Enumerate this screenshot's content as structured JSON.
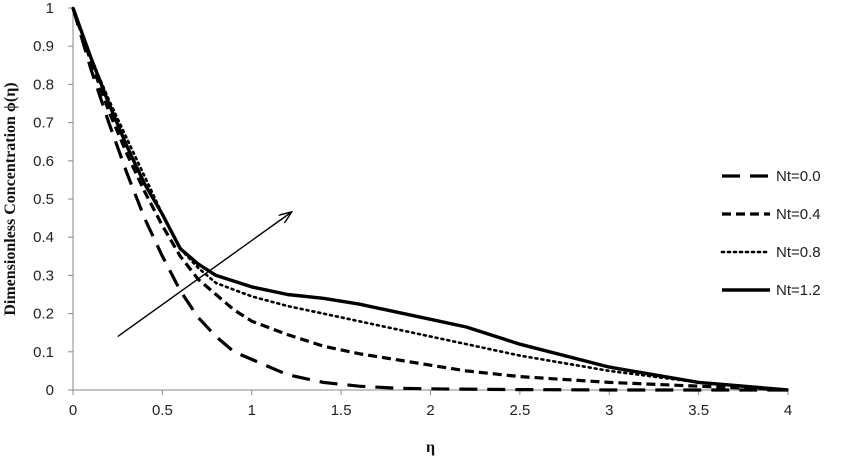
{
  "chart_data": {
    "type": "line",
    "xlabel": "η",
    "ylabel": "Dimensionless Concentration ϕ(η)",
    "xlim": [
      0,
      4
    ],
    "ylim": [
      0,
      1
    ],
    "x_ticks": [
      "0",
      "0.5",
      "1",
      "1.5",
      "2",
      "2.5",
      "3",
      "3.5",
      "4"
    ],
    "y_ticks": [
      "0",
      "0.1",
      "0.2",
      "0.3",
      "0.4",
      "0.5",
      "0.6",
      "0.7",
      "0.8",
      "0.9",
      "1"
    ],
    "grid": false,
    "legend_position": "right",
    "series": [
      {
        "name": "Nt=0.0",
        "style": "long-dash",
        "x": [
          0,
          0.1,
          0.2,
          0.3,
          0.4,
          0.5,
          0.6,
          0.7,
          0.8,
          0.9,
          1.0,
          1.2,
          1.4,
          1.6,
          1.8,
          2.0,
          2.5,
          3.0,
          3.5,
          4.0
        ],
        "y": [
          1.0,
          0.84,
          0.7,
          0.57,
          0.45,
          0.35,
          0.26,
          0.19,
          0.14,
          0.1,
          0.08,
          0.04,
          0.02,
          0.01,
          0.005,
          0.003,
          0.001,
          0.0,
          0.0,
          0.0
        ]
      },
      {
        "name": "Nt=0.4",
        "style": "short-dash",
        "x": [
          0,
          0.1,
          0.2,
          0.3,
          0.4,
          0.5,
          0.6,
          0.7,
          0.8,
          0.9,
          1.0,
          1.2,
          1.4,
          1.6,
          1.8,
          2.0,
          2.2,
          2.5,
          3.0,
          3.5,
          4.0
        ],
        "y": [
          1.0,
          0.86,
          0.73,
          0.62,
          0.52,
          0.43,
          0.35,
          0.29,
          0.25,
          0.21,
          0.18,
          0.145,
          0.115,
          0.095,
          0.08,
          0.065,
          0.05,
          0.035,
          0.02,
          0.01,
          0.0
        ]
      },
      {
        "name": "Nt=0.8",
        "style": "dotted",
        "x": [
          0,
          0.1,
          0.2,
          0.3,
          0.4,
          0.5,
          0.6,
          0.7,
          0.8,
          1.0,
          1.2,
          1.5,
          2.0,
          2.5,
          3.0,
          3.5,
          4.0
        ],
        "y": [
          1.0,
          0.87,
          0.76,
          0.66,
          0.56,
          0.46,
          0.37,
          0.32,
          0.28,
          0.245,
          0.22,
          0.19,
          0.14,
          0.09,
          0.05,
          0.02,
          0.0
        ]
      },
      {
        "name": "Nt=1.2",
        "style": "solid",
        "x": [
          0,
          0.1,
          0.2,
          0.3,
          0.4,
          0.5,
          0.6,
          0.7,
          0.8,
          1.0,
          1.2,
          1.4,
          1.6,
          1.8,
          2.0,
          2.2,
          2.5,
          3.0,
          3.5,
          4.0
        ],
        "y": [
          1.0,
          0.87,
          0.75,
          0.64,
          0.54,
          0.46,
          0.37,
          0.33,
          0.3,
          0.27,
          0.25,
          0.24,
          0.225,
          0.205,
          0.185,
          0.165,
          0.12,
          0.06,
          0.02,
          0.0
        ]
      }
    ],
    "annotations": [
      {
        "type": "arrow",
        "from": [
          0.25,
          0.14
        ],
        "to": [
          1.22,
          0.465
        ]
      }
    ]
  }
}
